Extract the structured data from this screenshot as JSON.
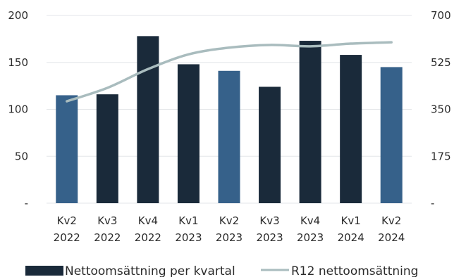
{
  "chart_data": {
    "type": "bar",
    "categories": [
      [
        "Kv2",
        "2022"
      ],
      [
        "Kv3",
        "2022"
      ],
      [
        "Kv4",
        "2022"
      ],
      [
        "Kv1",
        "2023"
      ],
      [
        "Kv2",
        "2023"
      ],
      [
        "Kv3",
        "2023"
      ],
      [
        "Kv4",
        "2023"
      ],
      [
        "Kv1",
        "2024"
      ],
      [
        "Kv2",
        "2024"
      ]
    ],
    "series": [
      {
        "name": "Nettoomsättning per kvartal",
        "type": "bar",
        "axis": "left",
        "values": [
          115,
          116,
          178,
          148,
          141,
          124,
          173,
          158,
          145
        ],
        "colors": [
          "#36618a",
          "#1a2a3a",
          "#1a2a3a",
          "#1a2a3a",
          "#36618a",
          "#1a2a3a",
          "#1a2a3a",
          "#1a2a3a",
          "#36618a"
        ]
      },
      {
        "name": "R12 nettoomsättning",
        "type": "line",
        "axis": "right",
        "values": [
          380,
          430,
          500,
          555,
          580,
          590,
          585,
          595,
          600
        ],
        "color": "#a9bcbe"
      }
    ],
    "y_left": {
      "ylim": [
        0,
        200
      ],
      "ticks": [
        0,
        50,
        100,
        150,
        200
      ],
      "tick_labels": [
        "-",
        "50",
        "100",
        "150",
        "200"
      ]
    },
    "y_right": {
      "ylim": [
        0,
        700
      ],
      "ticks": [
        0,
        175,
        350,
        525,
        700
      ],
      "tick_labels": [
        "-",
        "175",
        "350",
        "525",
        "700"
      ]
    },
    "grid": true,
    "legend": "bottom",
    "title": "",
    "xlabel": "",
    "ylabel": ""
  }
}
